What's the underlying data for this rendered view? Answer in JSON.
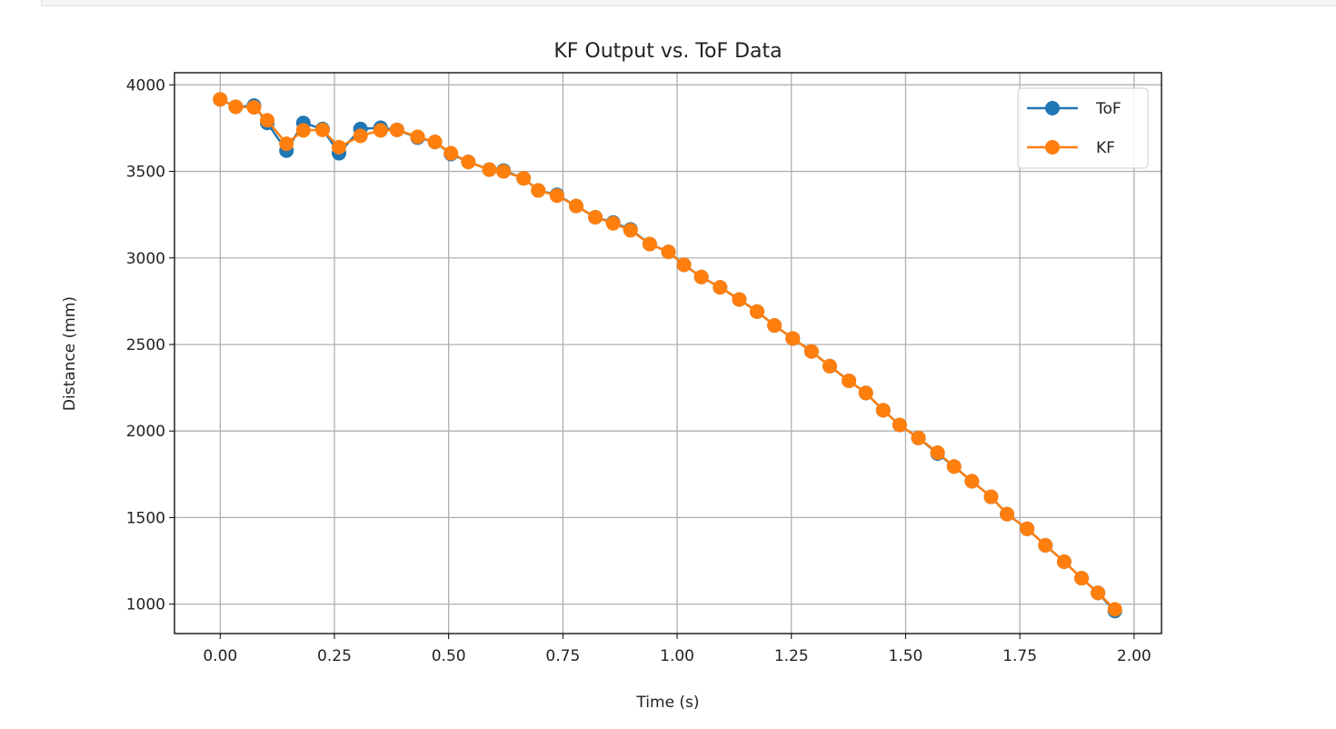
{
  "chart_data": {
    "type": "line",
    "title": "KF Output vs. ToF Data",
    "xlabel": "Time (s)",
    "ylabel": "Distance (mm)",
    "xlim": [
      -0.1,
      2.06
    ],
    "ylim": [
      830,
      4070
    ],
    "xticks": [
      "0.00",
      "0.25",
      "0.50",
      "0.75",
      "1.00",
      "1.25",
      "1.50",
      "1.75",
      "2.00"
    ],
    "yticks": [
      "1000",
      "1500",
      "2000",
      "2500",
      "3000",
      "3500",
      "4000"
    ],
    "grid": true,
    "legend_position": "top-right",
    "x": [
      0,
      0.034,
      0.074,
      0.103,
      0.145,
      0.182,
      0.224,
      0.26,
      0.307,
      0.351,
      0.387,
      0.432,
      0.47,
      0.505,
      0.543,
      0.589,
      0.62,
      0.664,
      0.696,
      0.737,
      0.779,
      0.821,
      0.86,
      0.898,
      0.94,
      0.981,
      1.015,
      1.053,
      1.094,
      1.136,
      1.175,
      1.213,
      1.253,
      1.294,
      1.334,
      1.376,
      1.413,
      1.451,
      1.487,
      1.528,
      1.57,
      1.606,
      1.645,
      1.687,
      1.722,
      1.766,
      1.806,
      1.847,
      1.885,
      1.921,
      1.958
    ],
    "series": [
      {
        "name": "ToF",
        "color": "#1f77b4",
        "values": [
          3916,
          3873,
          3880,
          3780,
          3620,
          3780,
          3745,
          3605,
          3745,
          3752,
          3740,
          3695,
          3670,
          3600,
          3555,
          3510,
          3505,
          3460,
          3390,
          3365,
          3300,
          3235,
          3205,
          3165,
          3080,
          3035,
          2960,
          2890,
          2830,
          2760,
          2690,
          2610,
          2535,
          2460,
          2375,
          2290,
          2220,
          2120,
          2035,
          1960,
          1870,
          1795,
          1710,
          1620,
          1520,
          1435,
          1340,
          1245,
          1150,
          1065,
          960
        ]
      },
      {
        "name": "KF",
        "color": "#ff7f0e",
        "values": [
          3916,
          3873,
          3870,
          3795,
          3660,
          3737,
          3740,
          3640,
          3705,
          3737,
          3740,
          3700,
          3670,
          3605,
          3555,
          3510,
          3500,
          3460,
          3390,
          3360,
          3300,
          3235,
          3200,
          3160,
          3080,
          3035,
          2960,
          2890,
          2830,
          2760,
          2690,
          2610,
          2535,
          2460,
          2375,
          2290,
          2220,
          2120,
          2035,
          1960,
          1875,
          1795,
          1710,
          1620,
          1520,
          1435,
          1340,
          1245,
          1150,
          1065,
          970
        ]
      }
    ]
  }
}
